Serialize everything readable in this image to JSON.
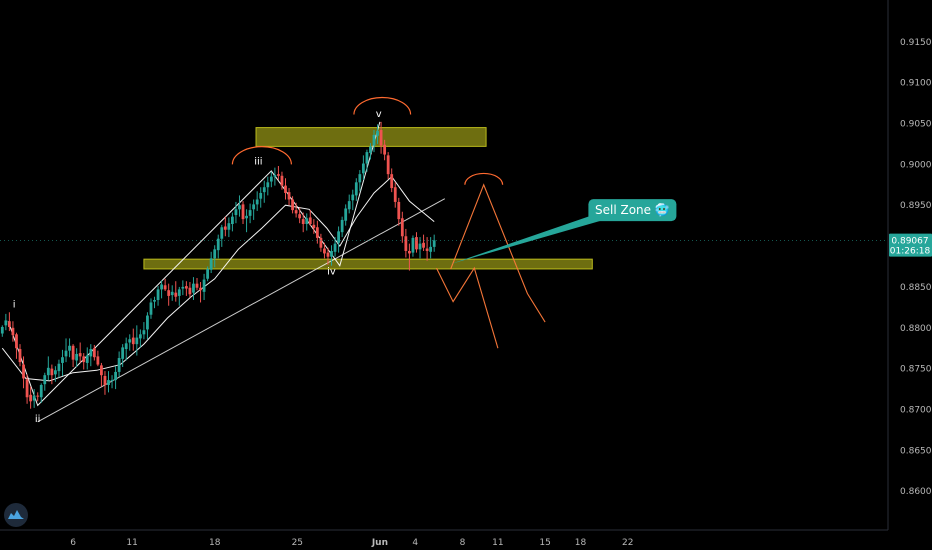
{
  "chart_data": {
    "type": "candlestick",
    "price_scale": {
      "ticks": [
        "0.91500",
        "0.91000",
        "0.90500",
        "0.90000",
        "0.89500",
        "0.89000",
        "0.88500",
        "0.88000",
        "0.87500",
        "0.87000",
        "0.86500",
        "0.86000"
      ],
      "ylim": [
        0.8555,
        0.9195
      ]
    },
    "time_axis": {
      "ticks": [
        {
          "label": "6",
          "day": 6
        },
        {
          "label": "11",
          "day": 11
        },
        {
          "label": "18",
          "day": 18
        },
        {
          "label": "25",
          "day": 25
        },
        {
          "label": "Jun",
          "day": 32
        },
        {
          "label": "4",
          "day": 35
        },
        {
          "label": "8",
          "day": 39
        },
        {
          "label": "11",
          "day": 42
        },
        {
          "label": "15",
          "day": 46
        },
        {
          "label": "18",
          "day": 49
        },
        {
          "label": "22",
          "day": 53
        }
      ]
    },
    "current_price": {
      "value": "0.89067",
      "countdown": "01:26:18",
      "color": "#26a69a"
    },
    "zones": [
      {
        "name": "resistance-zone",
        "x_from": 21.5,
        "x_to": 41.0,
        "y_from": 0.9022,
        "y_to": 0.9045,
        "color": "#c8c81e"
      },
      {
        "name": "support-zone",
        "x_from": 12.0,
        "x_to": 50.0,
        "y_from": 0.8872,
        "y_to": 0.8884,
        "color": "#c8c81e"
      }
    ],
    "wave_labels": [
      {
        "text": "i",
        "x": 1.0,
        "y": 0.8825
      },
      {
        "text": "ii",
        "x": 3.0,
        "y": 0.8685
      },
      {
        "text": "iii",
        "x": 21.7,
        "y": 0.9
      },
      {
        "text": "iv",
        "x": 27.9,
        "y": 0.8865
      },
      {
        "text": "v",
        "x": 31.9,
        "y": 0.9058
      }
    ],
    "callout": {
      "text": "Sell Zone 🥶",
      "x": 39.5,
      "y": 0.8944,
      "color": "#26a69a"
    },
    "candles": [
      [
        0.0,
        0.8793,
        0.8803,
        0.8789,
        0.8801
      ],
      [
        0.3,
        0.8803,
        0.8817,
        0.8797,
        0.8809
      ],
      [
        0.6,
        0.8808,
        0.8819,
        0.8796,
        0.8801
      ],
      [
        0.9,
        0.88,
        0.8808,
        0.8783,
        0.8791
      ],
      [
        1.2,
        0.8792,
        0.8794,
        0.8762,
        0.8775
      ],
      [
        1.5,
        0.8774,
        0.878,
        0.8753,
        0.8758
      ],
      [
        1.8,
        0.8755,
        0.8765,
        0.8726,
        0.8738
      ],
      [
        2.1,
        0.8737,
        0.8743,
        0.8707,
        0.8715
      ],
      [
        2.4,
        0.8718,
        0.8728,
        0.8701,
        0.871
      ],
      [
        2.7,
        0.8711,
        0.8725,
        0.8702,
        0.8717
      ],
      [
        3.0,
        0.8717,
        0.8721,
        0.871,
        0.8716
      ],
      [
        3.3,
        0.8715,
        0.8732,
        0.8708,
        0.873
      ],
      [
        3.6,
        0.8731,
        0.8745,
        0.8723,
        0.8742
      ],
      [
        3.9,
        0.8742,
        0.8765,
        0.8736,
        0.8751
      ],
      [
        4.2,
        0.875,
        0.8755,
        0.8731,
        0.8742
      ],
      [
        4.5,
        0.8743,
        0.8753,
        0.8734,
        0.8748
      ],
      [
        4.8,
        0.8747,
        0.8761,
        0.8739,
        0.8756
      ],
      [
        5.1,
        0.8757,
        0.8773,
        0.8741,
        0.8764
      ],
      [
        5.4,
        0.8765,
        0.8787,
        0.8758,
        0.8772
      ],
      [
        5.7,
        0.8772,
        0.8787,
        0.8764,
        0.8778
      ],
      [
        6.0,
        0.8778,
        0.878,
        0.8752,
        0.8761
      ],
      [
        6.3,
        0.876,
        0.8775,
        0.8752,
        0.8768
      ],
      [
        6.6,
        0.8769,
        0.8782,
        0.8757,
        0.8765
      ],
      [
        6.9,
        0.8765,
        0.8769,
        0.8749,
        0.8758
      ],
      [
        7.2,
        0.8757,
        0.8776,
        0.8749,
        0.8766
      ],
      [
        7.5,
        0.8765,
        0.878,
        0.8753,
        0.8774
      ],
      [
        7.8,
        0.8775,
        0.8779,
        0.876,
        0.8764
      ],
      [
        8.1,
        0.8765,
        0.8772,
        0.8753,
        0.8755
      ],
      [
        8.4,
        0.8754,
        0.8757,
        0.8728,
        0.8742
      ],
      [
        8.7,
        0.8741,
        0.8747,
        0.8718,
        0.873
      ],
      [
        9.0,
        0.873,
        0.8747,
        0.8721,
        0.8736
      ],
      [
        9.3,
        0.8736,
        0.8742,
        0.8726,
        0.8736
      ],
      [
        9.6,
        0.8736,
        0.8753,
        0.8725,
        0.8746
      ],
      [
        9.9,
        0.8746,
        0.8771,
        0.874,
        0.8763
      ],
      [
        10.2,
        0.8762,
        0.878,
        0.8752,
        0.8776
      ],
      [
        10.5,
        0.8774,
        0.8788,
        0.876,
        0.8781
      ],
      [
        10.8,
        0.8782,
        0.8792,
        0.8772,
        0.8786
      ],
      [
        11.1,
        0.8788,
        0.8799,
        0.8772,
        0.878
      ],
      [
        11.4,
        0.878,
        0.8803,
        0.8766,
        0.8788
      ],
      [
        11.7,
        0.8787,
        0.8798,
        0.8776,
        0.8792
      ],
      [
        12.0,
        0.8792,
        0.8807,
        0.8786,
        0.8797
      ],
      [
        12.3,
        0.8798,
        0.8819,
        0.8786,
        0.8815
      ],
      [
        12.6,
        0.8816,
        0.8836,
        0.8811,
        0.8831
      ],
      [
        12.9,
        0.8832,
        0.8838,
        0.8824,
        0.8834
      ],
      [
        13.2,
        0.8834,
        0.8851,
        0.8827,
        0.8847
      ],
      [
        13.5,
        0.8847,
        0.8858,
        0.8836,
        0.8853
      ],
      [
        13.8,
        0.8852,
        0.886,
        0.8845,
        0.8847
      ],
      [
        14.1,
        0.8846,
        0.8854,
        0.8827,
        0.8839
      ],
      [
        14.4,
        0.884,
        0.8852,
        0.8833,
        0.8844
      ],
      [
        14.7,
        0.8843,
        0.8857,
        0.8832,
        0.8838
      ],
      [
        15.0,
        0.8839,
        0.885,
        0.8827,
        0.8847
      ],
      [
        15.3,
        0.8848,
        0.8858,
        0.884,
        0.885
      ],
      [
        15.6,
        0.8851,
        0.8857,
        0.8839,
        0.8848
      ],
      [
        15.9,
        0.8849,
        0.8856,
        0.8837,
        0.8841
      ],
      [
        16.2,
        0.8843,
        0.8862,
        0.8834,
        0.8854
      ],
      [
        16.5,
        0.8854,
        0.8861,
        0.8846,
        0.8849
      ],
      [
        16.8,
        0.8849,
        0.8856,
        0.8831,
        0.8846
      ],
      [
        17.1,
        0.8844,
        0.8866,
        0.8834,
        0.8859
      ],
      [
        17.4,
        0.886,
        0.8875,
        0.8857,
        0.8872
      ],
      [
        17.7,
        0.8871,
        0.8893,
        0.8867,
        0.8885
      ],
      [
        18.0,
        0.8885,
        0.8901,
        0.8874,
        0.8896
      ],
      [
        18.3,
        0.8895,
        0.8914,
        0.8885,
        0.8909
      ],
      [
        18.6,
        0.8909,
        0.8926,
        0.8899,
        0.8923
      ],
      [
        18.9,
        0.8924,
        0.8936,
        0.8912,
        0.892
      ],
      [
        19.2,
        0.892,
        0.8935,
        0.8911,
        0.8928
      ],
      [
        19.5,
        0.8927,
        0.8941,
        0.8918,
        0.8936
      ],
      [
        19.8,
        0.8938,
        0.8954,
        0.8928,
        0.8945
      ],
      [
        20.1,
        0.8945,
        0.8962,
        0.8936,
        0.895
      ],
      [
        20.4,
        0.8951,
        0.8955,
        0.8927,
        0.8933
      ],
      [
        20.7,
        0.8934,
        0.8945,
        0.8917,
        0.8937
      ],
      [
        21.0,
        0.8937,
        0.8952,
        0.8928,
        0.8944
      ],
      [
        21.3,
        0.8945,
        0.8957,
        0.8932,
        0.8951
      ],
      [
        21.6,
        0.8951,
        0.8967,
        0.8943,
        0.8957
      ],
      [
        21.9,
        0.8958,
        0.8972,
        0.8947,
        0.8965
      ],
      [
        22.2,
        0.8966,
        0.898,
        0.8953,
        0.8972
      ],
      [
        22.5,
        0.8972,
        0.8985,
        0.8962,
        0.8978
      ],
      [
        22.8,
        0.8979,
        0.8991,
        0.8972,
        0.8985
      ],
      [
        23.1,
        0.8985,
        0.8996,
        0.8974,
        0.8987
      ],
      [
        23.4,
        0.8988,
        0.8998,
        0.8981,
        0.8986
      ],
      [
        23.7,
        0.8986,
        0.8991,
        0.8969,
        0.8974
      ],
      [
        24.0,
        0.8974,
        0.8983,
        0.8957,
        0.8965
      ],
      [
        24.3,
        0.8966,
        0.8971,
        0.895,
        0.8957
      ],
      [
        24.6,
        0.8957,
        0.8961,
        0.894,
        0.8944
      ],
      [
        24.9,
        0.8944,
        0.8953,
        0.8935,
        0.894
      ],
      [
        25.2,
        0.8939,
        0.8947,
        0.8928,
        0.8934
      ],
      [
        25.5,
        0.8933,
        0.8941,
        0.8917,
        0.8927
      ],
      [
        25.8,
        0.8927,
        0.894,
        0.8919,
        0.8934
      ],
      [
        26.1,
        0.8935,
        0.8944,
        0.8925,
        0.8927
      ],
      [
        26.4,
        0.8926,
        0.8933,
        0.8915,
        0.8922
      ],
      [
        26.7,
        0.8923,
        0.8931,
        0.8903,
        0.891
      ],
      [
        27.0,
        0.891,
        0.8915,
        0.8893,
        0.8898
      ],
      [
        27.3,
        0.8897,
        0.8904,
        0.8885,
        0.8891
      ],
      [
        27.6,
        0.8892,
        0.8898,
        0.8877,
        0.8887
      ],
      [
        27.9,
        0.8887,
        0.8901,
        0.8876,
        0.8894
      ],
      [
        28.2,
        0.8893,
        0.8911,
        0.8887,
        0.8903
      ],
      [
        28.5,
        0.8904,
        0.8924,
        0.8892,
        0.8918
      ],
      [
        28.8,
        0.8917,
        0.8936,
        0.8911,
        0.8932
      ],
      [
        29.1,
        0.8931,
        0.8951,
        0.8925,
        0.8946
      ],
      [
        29.4,
        0.8945,
        0.8963,
        0.894,
        0.8955
      ],
      [
        29.7,
        0.8956,
        0.8969,
        0.8944,
        0.8963
      ],
      [
        30.0,
        0.8962,
        0.8983,
        0.8955,
        0.8978
      ],
      [
        30.3,
        0.8978,
        0.8993,
        0.8967,
        0.8988
      ],
      [
        30.6,
        0.8989,
        0.9011,
        0.8981,
        0.9001
      ],
      [
        30.9,
        0.9001,
        0.9018,
        0.8991,
        0.9015
      ],
      [
        31.2,
        0.9014,
        0.9026,
        0.9006,
        0.9022
      ],
      [
        31.5,
        0.9023,
        0.9042,
        0.9015,
        0.9036
      ],
      [
        31.8,
        0.9035,
        0.9049,
        0.9025,
        0.9041
      ],
      [
        32.1,
        0.9042,
        0.9052,
        0.9013,
        0.9023
      ],
      [
        32.4,
        0.9024,
        0.903,
        0.9005,
        0.9012
      ],
      [
        32.7,
        0.9011,
        0.9015,
        0.8982,
        0.8988
      ],
      [
        33.0,
        0.8988,
        0.8995,
        0.8966,
        0.8971
      ],
      [
        33.3,
        0.8972,
        0.8978,
        0.8947,
        0.8954
      ],
      [
        33.6,
        0.8954,
        0.8959,
        0.8925,
        0.8933
      ],
      [
        33.9,
        0.8934,
        0.8942,
        0.8904,
        0.8912
      ],
      [
        34.2,
        0.8912,
        0.8921,
        0.8886,
        0.8894
      ],
      [
        34.5,
        0.8894,
        0.8903,
        0.887,
        0.8891
      ],
      [
        34.8,
        0.8892,
        0.8913,
        0.8887,
        0.891
      ],
      [
        35.1,
        0.8911,
        0.8917,
        0.8892,
        0.8896
      ],
      [
        35.4,
        0.8896,
        0.8911,
        0.8885,
        0.8903
      ],
      [
        35.7,
        0.8904,
        0.8914,
        0.8894,
        0.8898
      ],
      [
        36.0,
        0.8897,
        0.8911,
        0.8882,
        0.8894
      ],
      [
        36.3,
        0.8893,
        0.8911,
        0.8885,
        0.8899
      ],
      [
        36.6,
        0.8899,
        0.8914,
        0.8893,
        0.8907
      ]
    ],
    "series": [
      {
        "name": "",
        "color": "#ffffff",
        "points": [
          [
            0.0,
            0.8775
          ],
          [
            2.0,
            0.8738
          ],
          [
            4.0,
            0.8735
          ],
          [
            6.0,
            0.8745
          ],
          [
            8.0,
            0.8748
          ],
          [
            10.0,
            0.8755
          ],
          [
            12.0,
            0.878
          ],
          [
            14.0,
            0.8812
          ],
          [
            16.0,
            0.8838
          ],
          [
            18.0,
            0.886
          ],
          [
            20.0,
            0.8896
          ],
          [
            22.0,
            0.8922
          ],
          [
            24.0,
            0.895
          ],
          [
            26.0,
            0.8945
          ],
          [
            27.5,
            0.8922
          ],
          [
            28.6,
            0.89
          ],
          [
            30.0,
            0.8935
          ],
          [
            31.5,
            0.8965
          ],
          [
            33.0,
            0.8985
          ],
          [
            34.5,
            0.8955
          ],
          [
            36.6,
            0.893
          ]
        ]
      },
      {
        "name": "",
        "color": "#ffffff",
        "points": [
          [
            0.5,
            0.8808
          ],
          [
            3.0,
            0.8705
          ],
          [
            22.8,
            0.8992
          ],
          [
            28.6,
            0.8876
          ],
          [
            32.0,
            0.9052
          ]
        ]
      },
      {
        "name": "",
        "color": "#ffffff",
        "points": [
          [
            3.0,
            0.8685
          ],
          [
            37.5,
            0.8958
          ]
        ]
      },
      {
        "name": "",
        "color": "#ff7a3a",
        "points": [
          [
            36.8,
            0.8873
          ],
          [
            38.2,
            0.8832
          ],
          [
            40.0,
            0.8873
          ],
          [
            42.0,
            0.8775
          ]
        ]
      },
      {
        "name": "",
        "color": "#ff7a3a",
        "points": [
          [
            38.0,
            0.8872
          ],
          [
            40.8,
            0.8975
          ],
          [
            44.5,
            0.8842
          ],
          [
            46.0,
            0.8807
          ]
        ]
      }
    ],
    "arcs": [
      {
        "name": "wave-iii-arc",
        "x": [
          19.5,
          24.5
        ],
        "y": 0.9,
        "color": "#ff6a30"
      },
      {
        "name": "wave-v-arc",
        "x": [
          29.8,
          34.6
        ],
        "y": 0.9061,
        "color": "#ff6a30"
      },
      {
        "name": "projection-arc",
        "x": [
          39.2,
          42.4
        ],
        "y": 0.8975,
        "color": "#ff6a30"
      }
    ],
    "grid": false
  }
}
